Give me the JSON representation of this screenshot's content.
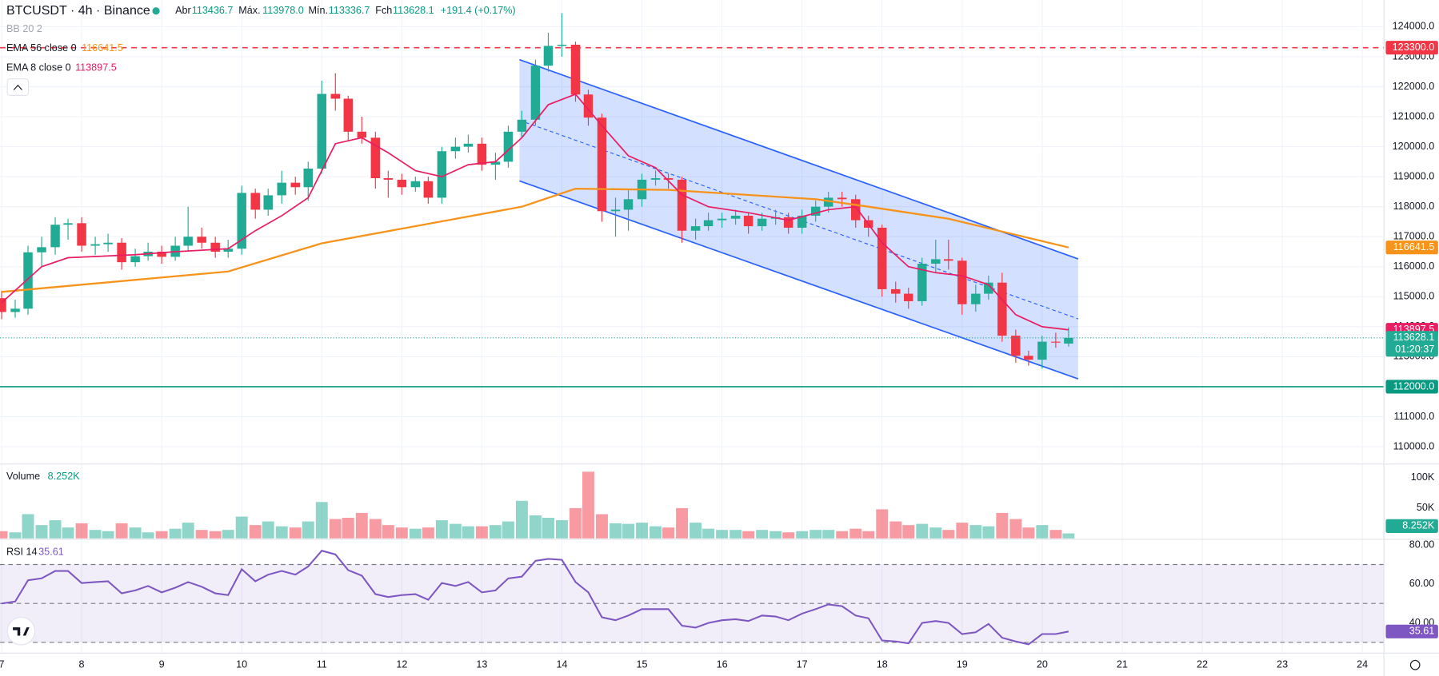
{
  "header": {
    "symbol": "BTCUSDT · 4h · Binance",
    "open_label": "Abr",
    "open": "113436.7",
    "high_label": "Máx.",
    "high": "113978.0",
    "low_label": "Mín.",
    "low": "113336.7",
    "close_label": "Fch",
    "close": "113628.1",
    "change": "+191.4 (+0.17%)"
  },
  "chart_data": [
    {
      "type": "candlestick",
      "bb_label": "BB 20 2",
      "x": [
        7,
        7.17,
        7.33,
        7.5,
        7.67,
        7.83,
        8,
        8.17,
        8.33,
        8.5,
        8.67,
        8.83,
        9,
        9.17,
        9.33,
        9.5,
        9.67,
        9.83,
        10,
        10.17,
        10.33,
        10.5,
        10.67,
        10.83,
        11,
        11.17,
        11.33,
        11.5,
        11.67,
        11.83,
        12,
        12.17,
        12.33,
        12.5,
        12.67,
        12.83,
        13,
        13.17,
        13.33,
        13.5,
        13.67,
        13.83,
        14,
        14.17,
        14.33,
        14.5,
        14.67,
        14.83,
        15,
        15.17,
        15.33,
        15.5,
        15.67,
        15.83,
        16,
        16.17,
        16.33,
        16.5,
        16.67,
        16.83,
        17,
        17.17,
        17.33,
        17.5,
        17.67,
        17.83,
        18,
        18.17,
        18.33,
        18.5,
        18.67,
        18.83,
        19,
        19.17,
        19.33,
        19.5,
        19.67,
        19.83,
        20,
        20.17,
        20.33
      ],
      "open": [
        114950,
        114490,
        114600,
        116480,
        116650,
        117400,
        117450,
        116700,
        116750,
        116800,
        116150,
        116350,
        116500,
        116330,
        116700,
        117000,
        116800,
        116500,
        116600,
        118460,
        117900,
        118380,
        118800,
        118650,
        119270,
        121760,
        121600,
        120500,
        120300,
        118950,
        118900,
        118650,
        118850,
        118300,
        119850,
        120000,
        120100,
        119400,
        119500,
        120500,
        120900,
        122700,
        123360,
        123400,
        121740,
        120970,
        117850,
        117900,
        118250,
        118900,
        118950,
        118900,
        117200,
        117350,
        117550,
        117600,
        117700,
        117350,
        117600,
        117650,
        117300,
        117700,
        118000,
        118300,
        118250,
        117550,
        117300,
        115250,
        115100,
        114850,
        116100,
        116250,
        116200,
        114750,
        115100,
        115470,
        113700,
        113030,
        112900,
        113500,
        113436.7
      ],
      "high": [
        115200,
        114900,
        116700,
        117000,
        117650,
        117600,
        117650,
        117000,
        117100,
        116950,
        116600,
        116800,
        116700,
        117000,
        118000,
        117300,
        117000,
        116900,
        118700,
        118600,
        118600,
        119200,
        119000,
        119500,
        122200,
        122450,
        121700,
        121000,
        120500,
        119200,
        119100,
        119000,
        119000,
        120000,
        120300,
        120400,
        120300,
        119800,
        120700,
        121200,
        122900,
        123800,
        124450,
        123500,
        121900,
        121100,
        118300,
        118600,
        119100,
        119200,
        119100,
        119000,
        117600,
        117800,
        117800,
        117900,
        117800,
        117800,
        117900,
        117800,
        117900,
        118200,
        118500,
        118500,
        118400,
        117700,
        117400,
        115500,
        115300,
        116300,
        116900,
        116900,
        116300,
        115400,
        115700,
        115800,
        113900,
        113200,
        113700,
        113800,
        113978.0
      ],
      "low": [
        114250,
        114300,
        114400,
        116000,
        116400,
        116900,
        116500,
        116400,
        116500,
        115900,
        116000,
        116200,
        116100,
        116200,
        116500,
        116600,
        116300,
        116300,
        116400,
        117600,
        117700,
        118100,
        118400,
        118200,
        119100,
        121200,
        120200,
        120100,
        118600,
        118300,
        118400,
        118500,
        118100,
        118100,
        119600,
        119800,
        119200,
        118900,
        119300,
        120300,
        120700,
        122500,
        123000,
        121500,
        120700,
        117500,
        117000,
        117200,
        118000,
        118700,
        118600,
        116800,
        116900,
        117200,
        117300,
        117400,
        117100,
        117200,
        117400,
        117100,
        117100,
        117500,
        117800,
        118000,
        117300,
        117000,
        115000,
        114800,
        114600,
        114700,
        115800,
        115900,
        114400,
        114500,
        114900,
        113500,
        112800,
        112700,
        112600,
        113300,
        113336.7
      ],
      "close": [
        114490,
        114600,
        116480,
        116650,
        117400,
        117450,
        116700,
        116750,
        116800,
        116150,
        116350,
        116500,
        116330,
        116700,
        117000,
        116800,
        116500,
        116600,
        118460,
        117900,
        118380,
        118800,
        118650,
        119270,
        121760,
        121600,
        120500,
        120300,
        118950,
        118900,
        118650,
        118850,
        118300,
        119850,
        120000,
        120100,
        119400,
        119500,
        120500,
        120900,
        122700,
        123360,
        123400,
        121740,
        120970,
        117850,
        117900,
        118250,
        118900,
        118950,
        118900,
        117200,
        117350,
        117550,
        117600,
        117700,
        117350,
        117600,
        117650,
        117300,
        117700,
        118000,
        118300,
        118250,
        117550,
        117300,
        115250,
        115100,
        114850,
        116100,
        116250,
        116200,
        114750,
        115100,
        115470,
        113700,
        113030,
        112900,
        113500,
        113480,
        113628.1
      ],
      "up_color": "#22ab94",
      "down_color": "#f23645",
      "xlim": [
        6.98,
        24.27
      ],
      "xticks": [
        7,
        8,
        9,
        10,
        11,
        12,
        13,
        14,
        15,
        16,
        17,
        18,
        19,
        20,
        21,
        22,
        23,
        24
      ],
      "ylim": [
        109450,
        124890
      ],
      "yticks": [
        {
          "value": 110000,
          "label": "110000.0"
        },
        {
          "value": 111000,
          "label": "111000.0"
        },
        {
          "value": 112000,
          "label": "112000.0"
        },
        {
          "value": 113000,
          "label": "113000.0"
        },
        {
          "value": 114000,
          "label": "114000.0"
        },
        {
          "value": 115000,
          "label": "115000.0"
        },
        {
          "value": 116000,
          "label": "116000.0"
        },
        {
          "value": 117000,
          "label": "117000.0"
        },
        {
          "value": 118000,
          "label": "118000.0"
        },
        {
          "value": 119000,
          "label": "119000.0"
        },
        {
          "value": 120000,
          "label": "120000.0"
        },
        {
          "value": 121000,
          "label": "121000.0"
        },
        {
          "value": 122000,
          "label": "122000.0"
        },
        {
          "value": 123000,
          "label": "123000.0"
        },
        {
          "value": 124000,
          "label": "124000.0"
        }
      ],
      "grid": true,
      "overlays": [
        {
          "name": "EMA 56 close 0",
          "color": "#f7931a",
          "x": [
            7,
            9.83,
            11,
            13.5,
            14.17,
            15.33,
            17.17,
            17.83,
            18.83,
            20.33
          ],
          "values": [
            115160,
            115840,
            116780,
            118000,
            118600,
            118560,
            118250,
            118000,
            117600,
            116641.5
          ]
        },
        {
          "name": "EMA 8 close 0",
          "color": "#e91e63",
          "x": [
            7,
            7.5,
            7.83,
            8.67,
            9.17,
            9.83,
            10.17,
            10.5,
            10.83,
            11.17,
            11.5,
            11.83,
            12.17,
            12.5,
            12.83,
            13.17,
            13.5,
            13.83,
            14.17,
            14.5,
            14.83,
            15.17,
            15.5,
            15.83,
            16.33,
            16.83,
            17.33,
            17.67,
            18,
            18.33,
            18.67,
            19,
            19.33,
            19.67,
            20,
            20.33
          ],
          "values": [
            114800,
            116000,
            116300,
            116400,
            116500,
            116600,
            117200,
            117700,
            118300,
            120100,
            120300,
            119800,
            119200,
            119000,
            119400,
            119500,
            120300,
            121400,
            121750,
            120700,
            119700,
            119300,
            118400,
            118000,
            117800,
            117550,
            117900,
            118000,
            116800,
            116000,
            115800,
            115700,
            115400,
            114400,
            114000,
            113897.5
          ]
        }
      ],
      "hlines": [
        {
          "value": 123300,
          "label": "123300.0",
          "color": "#f23645",
          "style": "dashed"
        },
        {
          "value": 112000,
          "label": "112000.0",
          "color": "#089981",
          "style": "solid"
        }
      ],
      "channel": {
        "x": [
          13.47,
          20.45
        ],
        "upper": [
          122900,
          116260
        ],
        "middle": [
          120880,
          114260
        ],
        "lower": [
          118860,
          112260
        ],
        "color": "#2962ff"
      },
      "countdown": "01:20:37"
    },
    {
      "type": "bar",
      "name": "Volume",
      "values": [
        12,
        10,
        40,
        22,
        30,
        18,
        25,
        14,
        12,
        25,
        18,
        10,
        12,
        16,
        26,
        14,
        12,
        14,
        36,
        22,
        28,
        20,
        18,
        28,
        60,
        32,
        34,
        42,
        32,
        22,
        18,
        16,
        18,
        30,
        24,
        20,
        20,
        22,
        28,
        62,
        38,
        34,
        30,
        50,
        110,
        40,
        25,
        24,
        26,
        20,
        18,
        50,
        26,
        16,
        14,
        14,
        12,
        14,
        12,
        10,
        12,
        14,
        14,
        12,
        16,
        12,
        48,
        28,
        22,
        24,
        18,
        14,
        26,
        22,
        20,
        42,
        32,
        18,
        22,
        14,
        8.252
      ],
      "value_label": "8.252K",
      "ylim": [
        0,
        121
      ],
      "yticks": [
        {
          "value": 50,
          "label": "50K"
        },
        {
          "value": 100,
          "label": "100K"
        }
      ]
    },
    {
      "type": "line",
      "name": "RSI 14",
      "color": "#7e57c2",
      "values": [
        50,
        51,
        61.9,
        62.9,
        66.7,
        66.7,
        60.5,
        61,
        61.4,
        55.2,
        56.7,
        59,
        55.7,
        58.1,
        61,
        58.6,
        55.2,
        54.3,
        67.6,
        61.4,
        64.8,
        66.7,
        64.8,
        69,
        77.1,
        75.2,
        67.1,
        64.3,
        54.8,
        53.3,
        54.3,
        54.8,
        51.9,
        60.5,
        59,
        61,
        55.7,
        56.7,
        62.9,
        63.8,
        71.9,
        72.9,
        72.4,
        61,
        55.7,
        42.9,
        41.4,
        43.8,
        47.1,
        47.1,
        47.1,
        38.6,
        37.6,
        40,
        41.4,
        41.9,
        41,
        43.8,
        43.3,
        41.4,
        44.8,
        47.1,
        49.5,
        48.6,
        43.8,
        42.4,
        31,
        30.5,
        29.5,
        40,
        41,
        40,
        34.3,
        35.2,
        39.5,
        32.4,
        30.5,
        29,
        34.3,
        34.3,
        35.61
      ],
      "ylim": [
        25,
        82
      ],
      "yticks": [
        {
          "value": 40,
          "label": "40.00"
        },
        {
          "value": 60,
          "label": "60.00"
        },
        {
          "value": 80,
          "label": "80.00"
        }
      ],
      "bands": [
        30,
        70
      ],
      "midline": 50
    }
  ]
}
